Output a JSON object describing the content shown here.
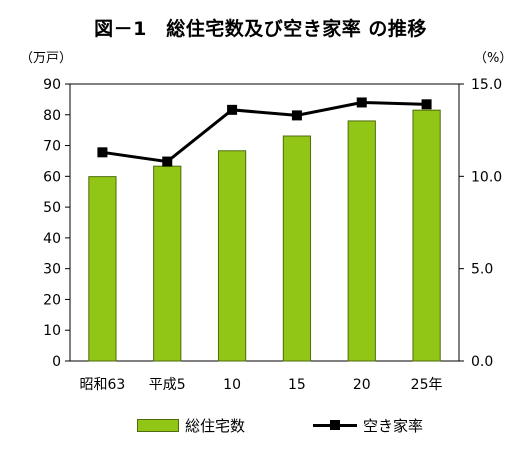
{
  "title": "図－1　総住宅数及び空き家率 の推移",
  "left_unit": "（万戸）",
  "right_unit": "（%）",
  "legend": {
    "bar_label": "総住宅数",
    "line_label": "空き家率"
  },
  "colors": {
    "bar_fill": "#92c616",
    "bar_stroke": "#4f6b0b",
    "line": "#000000"
  },
  "chart_data": {
    "type": "bar",
    "categories": [
      "昭和63",
      "平成5",
      "10",
      "15",
      "20",
      "25年"
    ],
    "series": [
      {
        "name": "総住宅数",
        "type": "bar",
        "axis": "left",
        "values": [
          59.9,
          63.3,
          68.3,
          73.1,
          78.0,
          81.5
        ]
      },
      {
        "name": "空き家率",
        "type": "line",
        "axis": "right",
        "values": [
          11.3,
          10.8,
          13.6,
          13.3,
          14.0,
          13.9
        ]
      }
    ],
    "ylim_left": [
      0,
      90
    ],
    "yticks_left": [
      "0",
      "10",
      "20",
      "30",
      "40",
      "50",
      "60",
      "70",
      "80",
      "90"
    ],
    "ylim_right": [
      0,
      15
    ],
    "yticks_right": [
      "0.0",
      "5.0",
      "10.0",
      "15.0"
    ],
    "grid": false,
    "legend_position": "bottom"
  }
}
